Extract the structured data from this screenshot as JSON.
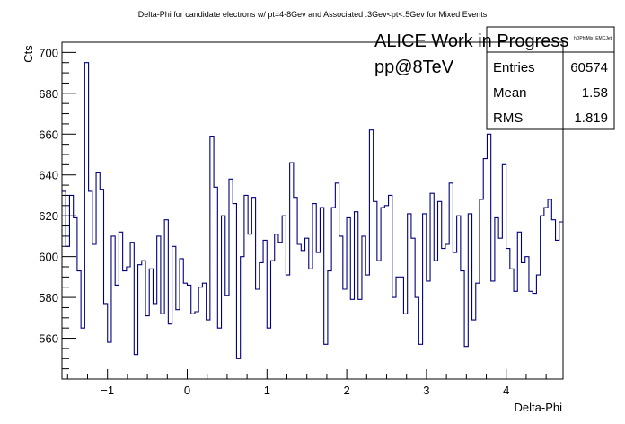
{
  "chart_data": {
    "type": "line",
    "title": "Delta-Phi for candidate electrons w/ pt=4-8Gev and Associated .3Gev<pt<.5Gev for Mixed Events",
    "xlabel": "Delta-Phi",
    "ylabel": "Cts",
    "xlim": [
      -1.5708,
      4.7124
    ],
    "ylim": [
      540,
      705
    ],
    "x_ticks": [
      -1,
      0,
      1,
      2,
      3,
      4
    ],
    "y_ticks": [
      560,
      580,
      600,
      620,
      640,
      660,
      680,
      700
    ],
    "series": [
      {
        "color": "#00007f",
        "values": [
          632,
          605,
          630,
          619,
          593,
          565,
          695,
          632,
          606,
          641,
          633,
          577,
          558,
          610,
          586,
          612,
          593,
          595,
          607,
          552,
          596,
          598,
          571,
          594,
          577,
          610,
          572,
          618,
          567,
          605,
          574,
          599,
          587,
          586,
          572,
          573,
          585,
          587,
          569,
          659,
          634,
          565,
          620,
          581,
          638,
          626,
          550,
          600,
          630,
          611,
          629,
          584,
          597,
          608,
          565,
          598,
          611,
          607,
          620,
          591,
          646,
          629,
          606,
          603,
          609,
          594,
          626,
          602,
          624,
          557,
          593,
          624,
          636,
          610,
          584,
          619,
          579,
          622,
          579,
          610,
          591,
          662,
          627,
          598,
          624,
          625,
          630,
          580,
          590,
          590,
          572,
          621,
          609,
          580,
          557,
          621,
          588,
          631,
          598,
          627,
          604,
          606,
          636,
          602,
          620,
          593,
          556,
          621,
          569,
          587,
          628,
          648,
          660,
          588,
          619,
          609,
          645,
          604,
          594,
          583,
          612,
          597,
          600,
          583,
          582,
          591,
          620,
          624,
          628,
          618,
          608,
          617
        ]
      }
    ],
    "grid": false,
    "legend": "none"
  },
  "annotations": {
    "line1": "ALICE Work in Progress",
    "line2": "pp@8TeV"
  },
  "stats_box": {
    "name": "hDPhiMix_EMCJet",
    "entries_label": "Entries",
    "entries_value": "60574",
    "mean_label": "Mean",
    "mean_value": "1.58",
    "rms_label": "RMS",
    "rms_value": "1.819"
  }
}
